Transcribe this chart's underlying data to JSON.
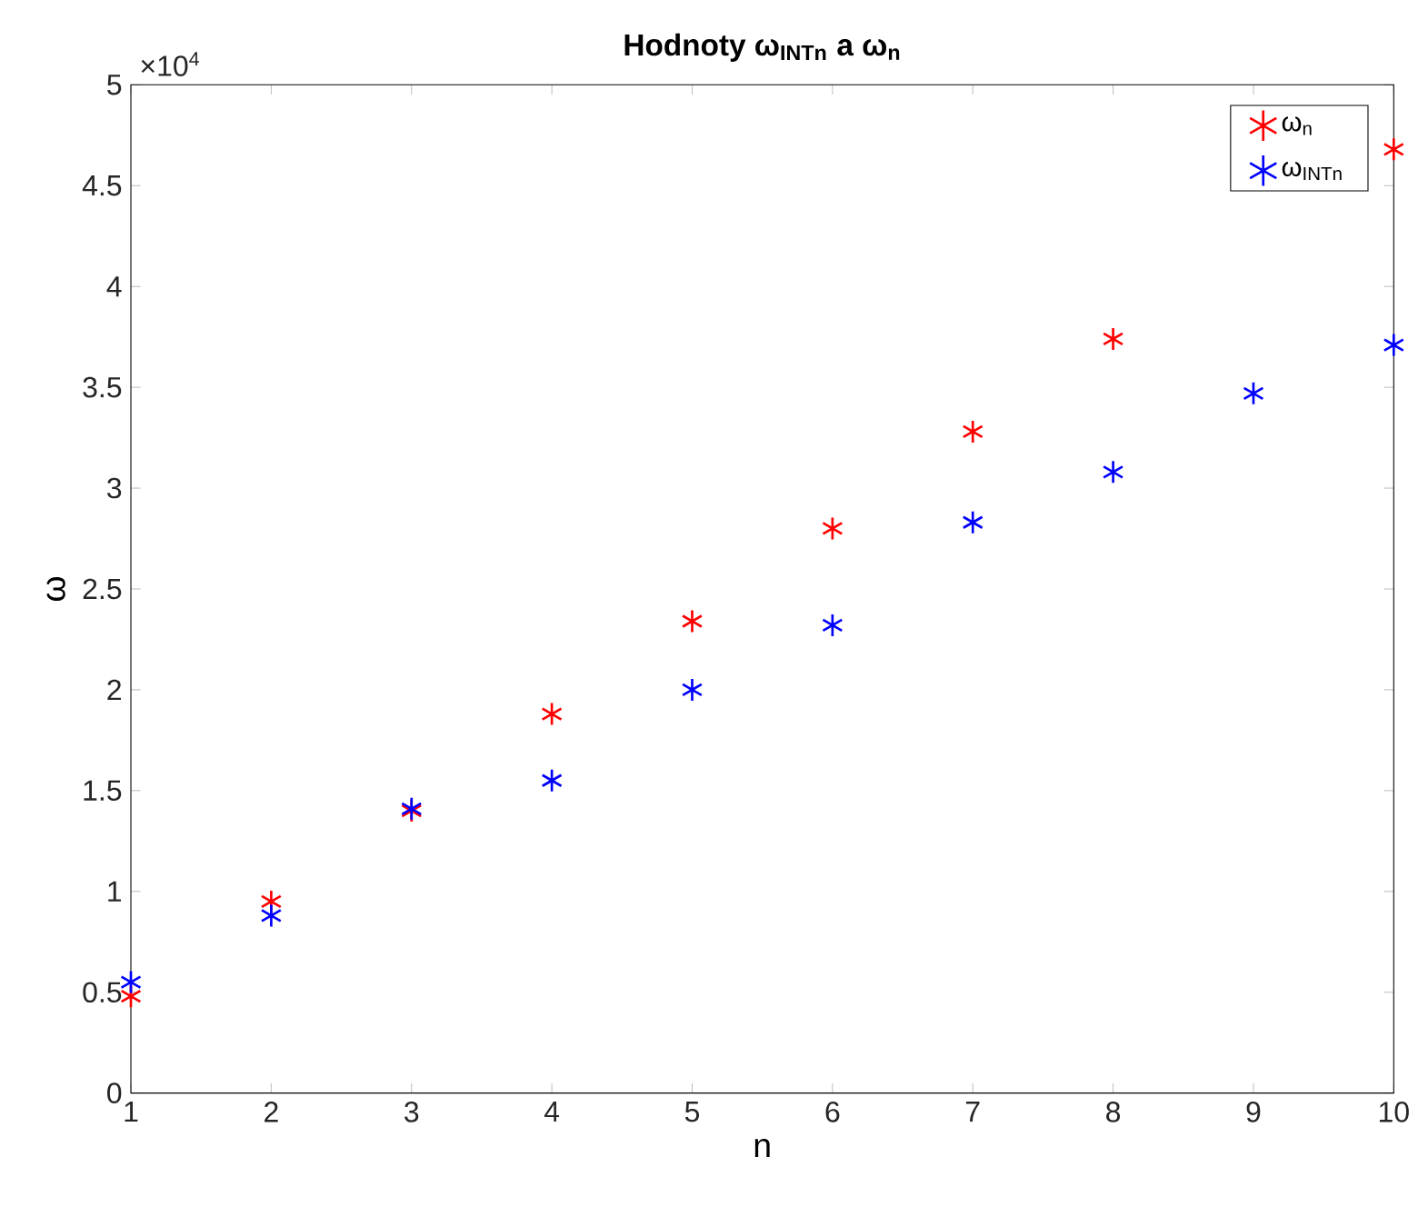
{
  "chart_data": {
    "type": "scatter",
    "title": "Hodnoty ω$_{INTn}$ a ω$_{n}$",
    "xlabel": "n",
    "ylabel": "ω",
    "annotations": [
      "×10$^{4}$"
    ],
    "x": [
      1,
      2,
      3,
      4,
      5,
      6,
      7,
      8,
      9,
      10
    ],
    "series": [
      {
        "name": "ω$_{n}$",
        "color": "#ff0000",
        "values": [
          0.48,
          0.95,
          1.4,
          1.88,
          2.34,
          2.8,
          3.28,
          3.74,
          null,
          4.68
        ]
      },
      {
        "name": "ω$_{INTn}$",
        "color": "#0000ff",
        "values": [
          0.55,
          0.88,
          1.41,
          1.55,
          2.0,
          2.32,
          2.83,
          3.08,
          3.47,
          3.71
        ]
      }
    ],
    "xlim": [
      1,
      10
    ],
    "xticks": [
      1,
      2,
      3,
      4,
      5,
      6,
      7,
      8,
      9,
      10
    ],
    "ylim": [
      0,
      5
    ],
    "yticks": [
      0,
      0.5,
      1,
      1.5,
      2,
      2.5,
      3,
      3.5,
      4,
      4.5,
      5
    ],
    "grid": false,
    "legend": "top right",
    "marker": "cross"
  }
}
